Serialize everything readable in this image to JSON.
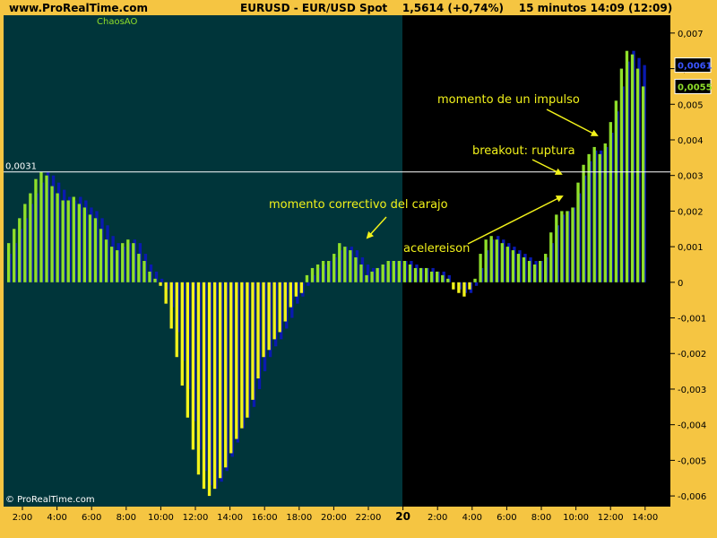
{
  "header": {
    "site": "www.ProRealTime.com",
    "instrument": "EURUSD - EUR/USD Spot",
    "price": "1,5614 (+0,74%)",
    "timeframe": "15 minutos  14:09 (12:09)"
  },
  "legend": {
    "indicator": "ChaosAO"
  },
  "copyright": "© ProRealTime.com",
  "colors": {
    "frame": "#f5c542",
    "panel_left": "#00353a",
    "panel_right": "#000000",
    "bar_up": "#8fdf2a",
    "bar_down": "#f2f21a",
    "signal": "#0a1ab0",
    "annotation": "#f2f21a",
    "hline": "#ffffff"
  },
  "chart_data": {
    "type": "bar",
    "title": "ChaosAO",
    "ylim": [
      -0.0063,
      0.0075
    ],
    "y_ticks": [
      "0,007",
      "0,006",
      "0,005",
      "0,004",
      "0,003",
      "0,002",
      "0,001",
      "0",
      "-0,001",
      "-0,002",
      "-0,003",
      "-0,004",
      "-0,005",
      "-0,006"
    ],
    "y_tick_values": [
      0.007,
      0.006,
      0.005,
      0.004,
      0.003,
      0.002,
      0.001,
      0,
      -0.001,
      -0.002,
      -0.003,
      -0.004,
      -0.005,
      -0.006
    ],
    "x_ticks": [
      "2:00",
      "4:00",
      "6:00",
      "8:00",
      "10:00",
      "12:00",
      "14:00",
      "16:00",
      "18:00",
      "20:00",
      "22:00",
      "20",
      "2:00",
      "4:00",
      "6:00",
      "8:00",
      "10:00",
      "12:00",
      "14:00"
    ],
    "day_separator_label": "20",
    "hline": {
      "value": 0.0031,
      "label": "0,0031"
    },
    "last_values": [
      {
        "label": "0,0061",
        "value": 0.0061,
        "role": "signal"
      },
      {
        "label": "0,0055",
        "value": 0.0055,
        "role": "ao"
      }
    ],
    "annotations": [
      "momento de un impulso",
      "breakout: ruptura",
      "momento correctivo del carajo",
      "acelereison"
    ],
    "values": [
      0.0011,
      0.0015,
      0.0018,
      0.0022,
      0.0025,
      0.0029,
      0.0031,
      0.003,
      0.0027,
      0.0025,
      0.0023,
      0.0023,
      0.0024,
      0.0022,
      0.0021,
      0.0019,
      0.0018,
      0.0015,
      0.0012,
      0.001,
      0.0009,
      0.0011,
      0.0012,
      0.0011,
      0.0008,
      0.0006,
      0.0003,
      0.0001,
      -0.0001,
      -0.0006,
      -0.0013,
      -0.0021,
      -0.0029,
      -0.0038,
      -0.0047,
      -0.0054,
      -0.0058,
      -0.006,
      -0.0058,
      -0.0055,
      -0.0052,
      -0.0048,
      -0.0044,
      -0.0041,
      -0.0038,
      -0.0033,
      -0.0027,
      -0.0021,
      -0.0019,
      -0.0016,
      -0.0014,
      -0.0011,
      -0.0007,
      -0.0004,
      -0.0003,
      0.0002,
      0.0004,
      0.0005,
      0.0006,
      0.0006,
      0.0008,
      0.0011,
      0.001,
      0.0009,
      0.0007,
      0.0005,
      0.0002,
      0.0003,
      0.0004,
      0.0005,
      0.0006,
      0.0006,
      0.0006,
      0.0006,
      0.0005,
      0.0004,
      0.0004,
      0.0004,
      0.0003,
      0.0003,
      0.0002,
      0.0001,
      -0.0002,
      -0.0003,
      -0.0004,
      -0.0002,
      0.0001,
      0.0008,
      0.0012,
      0.0013,
      0.0012,
      0.0011,
      0.001,
      0.0009,
      0.0008,
      0.0007,
      0.0006,
      0.0005,
      0.0006,
      0.0008,
      0.0014,
      0.0019,
      0.002,
      0.002,
      0.0021,
      0.0028,
      0.0033,
      0.0036,
      0.0038,
      0.0036,
      0.0039,
      0.0045,
      0.0051,
      0.006,
      0.0065,
      0.0064,
      0.006,
      0.0055
    ],
    "signal": [
      0.0008,
      0.0011,
      0.0015,
      0.0018,
      0.0022,
      0.0025,
      0.0028,
      0.0031,
      0.003,
      0.0028,
      0.0026,
      0.0024,
      0.0023,
      0.0024,
      0.0023,
      0.0021,
      0.002,
      0.0018,
      0.0016,
      0.0013,
      0.0011,
      0.001,
      0.0011,
      0.0012,
      0.0011,
      0.0008,
      0.0005,
      0.0003,
      0.0001,
      -0.0002,
      -0.0007,
      -0.0014,
      -0.0022,
      -0.003,
      -0.0039,
      -0.0047,
      -0.0053,
      -0.0057,
      -0.0058,
      -0.0056,
      -0.0053,
      -0.0049,
      -0.0045,
      -0.0041,
      -0.0038,
      -0.0035,
      -0.003,
      -0.0025,
      -0.0021,
      -0.0018,
      -0.0016,
      -0.0013,
      -0.001,
      -0.0006,
      -0.0004,
      -0.0001,
      0.0002,
      0.0004,
      0.0005,
      0.0006,
      0.0007,
      0.0009,
      0.001,
      0.001,
      0.0009,
      0.0007,
      0.0005,
      0.0004,
      0.0004,
      0.0005,
      0.0006,
      0.0006,
      0.0006,
      0.0006,
      0.0006,
      0.0005,
      0.0004,
      0.0004,
      0.0004,
      0.0003,
      0.0003,
      0.0002,
      0.0,
      -0.0002,
      -0.0003,
      -0.0003,
      -0.0001,
      0.0004,
      0.0009,
      0.0012,
      0.0013,
      0.0012,
      0.0011,
      0.001,
      0.0009,
      0.0008,
      0.0007,
      0.0006,
      0.0006,
      0.0007,
      0.0011,
      0.0016,
      0.0019,
      0.002,
      0.0021,
      0.0025,
      0.003,
      0.0034,
      0.0037,
      0.0037,
      0.0038,
      0.0042,
      0.0048,
      0.0055,
      0.0062,
      0.0065,
      0.0063,
      0.0061
    ]
  }
}
